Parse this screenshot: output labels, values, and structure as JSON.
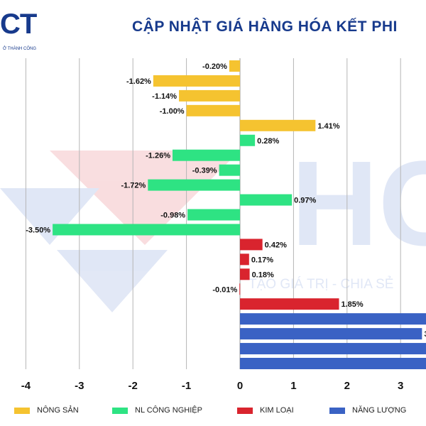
{
  "header": {
    "logo_text": "CT",
    "logo_tagline": "Ở THÀNH CÔNG",
    "title": "CẬP NHẬT GIÁ HÀNG HÓA KẾT PHI"
  },
  "watermark": {
    "text": "HC",
    "slogan": "TẠO GIÁ TRỊ - CHIA SẺ"
  },
  "colors": {
    "nong_san": "#F5C330",
    "nl_cong_nghiep": "#2EE383",
    "kim_loai": "#D9242E",
    "nang_luong": "#3A62C4",
    "title": "#173A8C"
  },
  "chart_data": {
    "type": "bar",
    "orientation": "horizontal",
    "xlim": [
      -4.5,
      3.5
    ],
    "xticks": [
      -4,
      -3,
      -2,
      -1,
      0,
      1,
      2,
      3
    ],
    "grid": true,
    "legend_position": "bottom",
    "rows": [
      {
        "value": -0.2,
        "label": "-0.20%",
        "group": "nong_san"
      },
      {
        "value": -1.62,
        "label": "-1.62%",
        "group": "nong_san"
      },
      {
        "value": -1.14,
        "label": "-1.14%",
        "group": "nong_san"
      },
      {
        "value": -1.0,
        "label": "-1.00%",
        "group": "nong_san"
      },
      {
        "value": 1.41,
        "label": "1.41%",
        "group": "nong_san"
      },
      {
        "value": 0.28,
        "label": "0.28%",
        "group": "nl_cong_nghiep"
      },
      {
        "value": -1.26,
        "label": "-1.26%",
        "group": "nl_cong_nghiep"
      },
      {
        "value": -0.39,
        "label": "-0.39%",
        "group": "nl_cong_nghiep"
      },
      {
        "value": -1.72,
        "label": "-1.72%",
        "group": "nl_cong_nghiep"
      },
      {
        "value": 0.97,
        "label": "0.97%",
        "group": "nl_cong_nghiep"
      },
      {
        "value": -0.98,
        "label": "-0.98%",
        "group": "nl_cong_nghiep"
      },
      {
        "value": -3.5,
        "label": "-3.50%",
        "group": "nl_cong_nghiep"
      },
      {
        "value": 0.42,
        "label": "0.42%",
        "group": "kim_loai"
      },
      {
        "value": 0.17,
        "label": "0.17%",
        "group": "kim_loai"
      },
      {
        "value": 0.18,
        "label": "0.18%",
        "group": "kim_loai"
      },
      {
        "value": -0.01,
        "label": "-0.01%",
        "group": "kim_loai"
      },
      {
        "value": 1.85,
        "label": "1.85%",
        "group": "kim_loai"
      },
      {
        "value": 3.6,
        "label": "",
        "group": "nang_luong"
      },
      {
        "value": 3.4,
        "label": "3",
        "group": "nang_luong"
      },
      {
        "value": 3.6,
        "label": "",
        "group": "nang_luong"
      },
      {
        "value": 3.6,
        "label": "",
        "group": "nang_luong"
      }
    ],
    "legend": [
      {
        "group": "nong_san",
        "name": "NÔNG SẢN"
      },
      {
        "group": "nl_cong_nghiep",
        "name": "NL CÔNG NGHIỆP"
      },
      {
        "group": "kim_loai",
        "name": "KIM LOẠI"
      },
      {
        "group": "nang_luong",
        "name": "NĂNG LƯỢNG"
      }
    ]
  }
}
